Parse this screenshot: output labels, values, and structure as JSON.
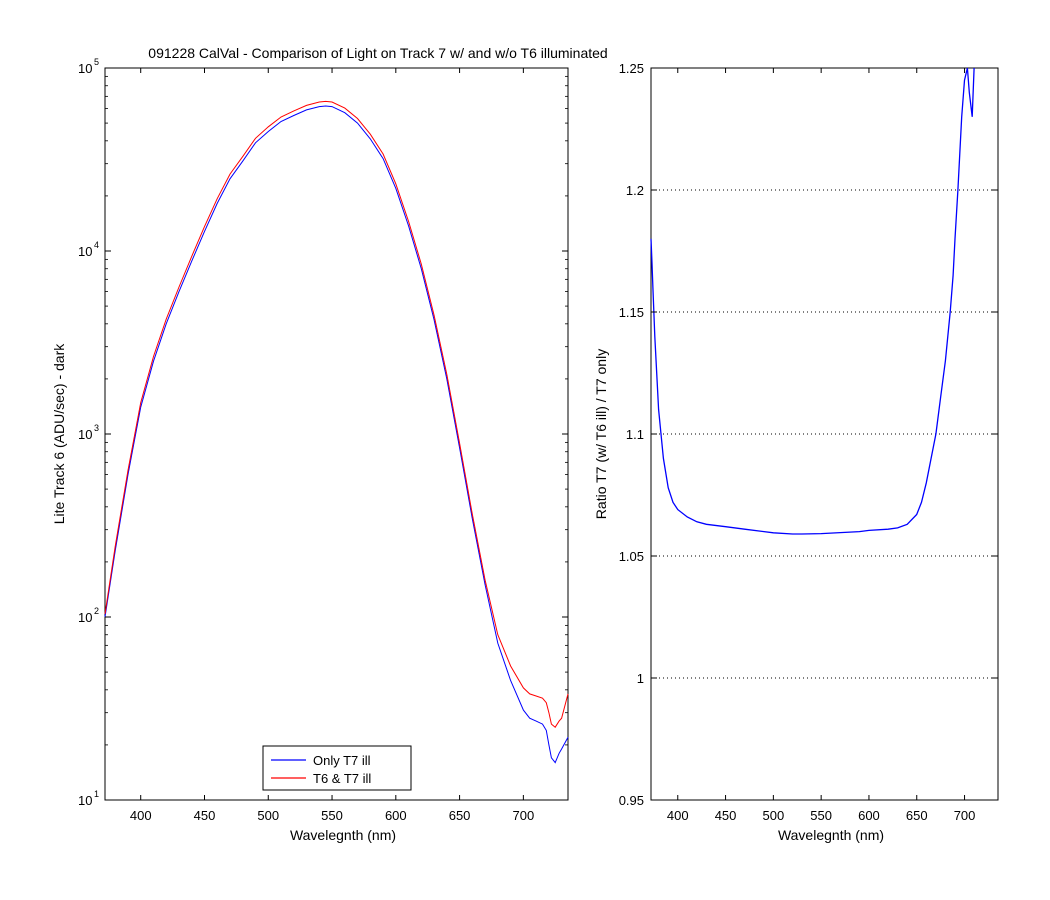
{
  "figure_title": "091228 CalVal - Comparison of Light on Track 7 w/ and w/o T6 illuminated",
  "chart_data": [
    {
      "type": "line",
      "title": "091228 CalVal - Comparison of Light on Track 7 w/ and w/o T6 illuminated",
      "xlabel": "Wavelegnth (nm)",
      "ylabel": "Lite Track 6 (ADU/sec) - dark",
      "xlim": [
        372,
        735
      ],
      "ylim": [
        10,
        100000
      ],
      "yscale": "log",
      "grid": false,
      "legend_position": "bottom-center",
      "xticks": [
        400,
        450,
        500,
        550,
        600,
        650,
        700
      ],
      "yticks": [
        {
          "value": 10,
          "base": "10",
          "exp": "1"
        },
        {
          "value": 100,
          "base": "10",
          "exp": "2"
        },
        {
          "value": 1000,
          "base": "10",
          "exp": "3"
        },
        {
          "value": 10000,
          "base": "10",
          "exp": "4"
        },
        {
          "value": 100000,
          "base": "10",
          "exp": "5"
        }
      ],
      "series": [
        {
          "name": "Only T7 ill",
          "color": "#0000ff",
          "x": [
            372,
            380,
            390,
            400,
            410,
            420,
            430,
            440,
            450,
            460,
            470,
            480,
            490,
            500,
            510,
            520,
            530,
            540,
            545,
            550,
            560,
            570,
            580,
            590,
            600,
            610,
            620,
            630,
            640,
            650,
            660,
            670,
            680,
            690,
            700,
            705,
            710,
            715,
            718,
            720,
            722,
            725,
            728,
            730,
            735
          ],
          "y": [
            100,
            230,
            600,
            1400,
            2500,
            4000,
            6000,
            8800,
            12800,
            18200,
            24800,
            31000,
            39000,
            45000,
            51000,
            55000,
            59000,
            61500,
            62000,
            61500,
            57000,
            50000,
            41000,
            32000,
            22000,
            13700,
            8000,
            4200,
            2000,
            840,
            345,
            150,
            72,
            45,
            31,
            28,
            27,
            26,
            24,
            20,
            17,
            16,
            18,
            19,
            22
          ]
        },
        {
          "name": "T6 & T7 ill",
          "color": "#ff0000",
          "x": [
            372,
            380,
            390,
            400,
            410,
            420,
            430,
            440,
            450,
            460,
            470,
            480,
            490,
            500,
            510,
            520,
            530,
            540,
            545,
            550,
            560,
            570,
            580,
            590,
            600,
            610,
            620,
            630,
            640,
            650,
            660,
            670,
            680,
            690,
            700,
            705,
            710,
            715,
            718,
            720,
            722,
            725,
            728,
            730,
            735
          ],
          "y": [
            104,
            243,
            633,
            1480,
            2650,
            4240,
            6360,
            9340,
            13600,
            19300,
            26300,
            32900,
            41300,
            47700,
            54000,
            58300,
            62500,
            65200,
            65700,
            65200,
            60400,
            53000,
            43500,
            33900,
            23300,
            14500,
            8480,
            4450,
            2120,
            890,
            365,
            159,
            80,
            54,
            41,
            38,
            37,
            36,
            34,
            30,
            26,
            25,
            27,
            28,
            38
          ]
        }
      ]
    },
    {
      "type": "line",
      "title": "",
      "xlabel": "Wavelegnth (nm)",
      "ylabel": "Ratio T7 (w/ T6 ill) / T7 only",
      "xlim": [
        372,
        735
      ],
      "ylim": [
        0.95,
        1.25
      ],
      "yscale": "linear",
      "grid": true,
      "grid_axis": "y",
      "xticks": [
        400,
        450,
        500,
        550,
        600,
        650,
        700
      ],
      "yticks": [
        {
          "value": 0.95,
          "label": "0.95"
        },
        {
          "value": 1.0,
          "label": "1"
        },
        {
          "value": 1.05,
          "label": "1.05"
        },
        {
          "value": 1.1,
          "label": "1.1"
        },
        {
          "value": 1.15,
          "label": "1.15"
        },
        {
          "value": 1.2,
          "label": "1.2"
        },
        {
          "value": 1.25,
          "label": "1.25"
        }
      ],
      "series": [
        {
          "color": "#0000ff",
          "x": [
            372,
            373,
            374,
            376,
            378,
            380,
            385,
            390,
            395,
            400,
            410,
            420,
            430,
            450,
            470,
            500,
            520,
            530,
            550,
            570,
            590,
            600,
            620,
            630,
            640,
            650,
            655,
            660,
            665,
            670,
            675,
            680,
            685,
            688,
            690,
            693,
            695,
            697,
            700,
            703,
            705,
            708,
            710
          ],
          "y": [
            1.18,
            1.17,
            1.16,
            1.14,
            1.125,
            1.11,
            1.09,
            1.078,
            1.072,
            1.069,
            1.066,
            1.064,
            1.063,
            1.062,
            1.061,
            1.0595,
            1.059,
            1.059,
            1.0592,
            1.0596,
            1.06,
            1.0605,
            1.061,
            1.0615,
            1.063,
            1.067,
            1.072,
            1.08,
            1.09,
            1.1,
            1.115,
            1.13,
            1.15,
            1.165,
            1.18,
            1.2,
            1.215,
            1.23,
            1.245,
            1.25,
            1.24,
            1.23,
            1.25
          ]
        }
      ]
    }
  ]
}
